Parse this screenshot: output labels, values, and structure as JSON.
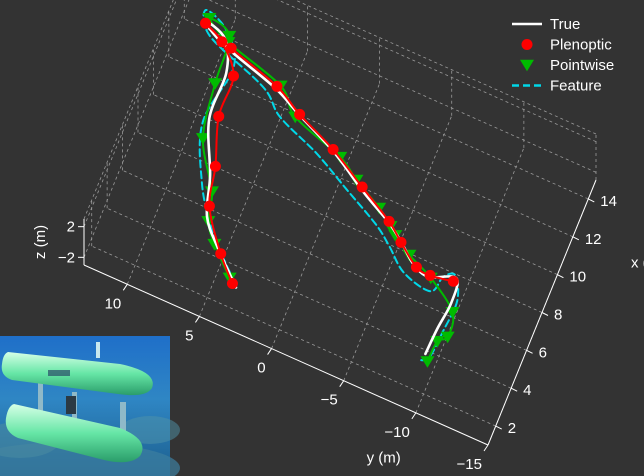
{
  "chart_data": {
    "type": "line",
    "projection": "3d",
    "title": "",
    "xlabel": "x (m)",
    "ylabel": "y (m)",
    "zlabel": "z (m)",
    "x_ticks": [
      "2",
      "4",
      "6",
      "8",
      "10",
      "12",
      "14"
    ],
    "y_ticks": [
      "10",
      "5",
      "0",
      "−5",
      "−10",
      "−15"
    ],
    "z_ticks": [
      "2",
      "−2"
    ],
    "xlim": [
      1,
      15
    ],
    "ylim": [
      -15,
      13
    ],
    "zlim": [
      -3,
      3
    ],
    "grid": true,
    "legend_position": "top-right",
    "background_color": "#333333",
    "series": [
      {
        "name": "True",
        "color": "#ffffff",
        "style": "solid",
        "marker": "none",
        "points": [
          [
            2.0,
            3.0,
            0
          ],
          [
            3.4,
            5.0,
            0
          ],
          [
            4.6,
            6.4,
            0
          ],
          [
            6.5,
            7.2,
            0
          ],
          [
            9.0,
            8.6,
            0
          ],
          [
            11.4,
            8.7,
            0
          ],
          [
            12.9,
            9.6,
            0
          ],
          [
            13.3,
            11.2,
            0
          ],
          [
            12.6,
            9.5,
            0
          ],
          [
            11.7,
            5.5,
            0
          ],
          [
            11.0,
            3.5,
            0
          ],
          [
            10.0,
            0.5,
            0
          ],
          [
            8.8,
            -2.2,
            0
          ],
          [
            7.9,
            -4.5,
            0
          ],
          [
            7.2,
            -5.8,
            0
          ],
          [
            6.6,
            -6.8,
            0
          ],
          [
            6.3,
            -8.0,
            0
          ],
          [
            6.8,
            -9.7,
            0
          ],
          [
            5.6,
            -10.0,
            0
          ],
          [
            4.2,
            -9.8,
            0
          ],
          [
            2.8,
            -9.7,
            0
          ]
        ]
      },
      {
        "name": "Plenoptic",
        "color": "#ff0000",
        "style": "solid",
        "marker": "circle",
        "points": [
          [
            2.1,
            3.3,
            0
          ],
          [
            3.2,
            4.7,
            0
          ],
          [
            5.1,
            6.5,
            0
          ],
          [
            7.0,
            7.1,
            0
          ],
          [
            9.3,
            8.1,
            0
          ],
          [
            11.4,
            8.2,
            0
          ],
          [
            12.7,
            9.7,
            0
          ],
          [
            13.2,
            11.1,
            0
          ],
          [
            12.6,
            9.0,
            0
          ],
          [
            11.8,
            5.4,
            0
          ],
          [
            11.0,
            3.4,
            0
          ],
          [
            10.1,
            0.6,
            0
          ],
          [
            9.0,
            -2.0,
            0
          ],
          [
            8.0,
            -4.4,
            0
          ],
          [
            7.3,
            -5.6,
            0
          ],
          [
            6.5,
            -7.1,
            0
          ],
          [
            6.4,
            -8.1,
            0
          ],
          [
            6.6,
            -9.6,
            0
          ]
        ]
      },
      {
        "name": "Pointwise",
        "color": "#00bb00",
        "style": "solid",
        "marker": "triangle-down",
        "points": [
          [
            2.3,
            3.6,
            0
          ],
          [
            3.5,
            5.3,
            0
          ],
          [
            4.4,
            6.2,
            0
          ],
          [
            5.8,
            6.7,
            0
          ],
          [
            8.0,
            8.5,
            0
          ],
          [
            10.7,
            9.1,
            0
          ],
          [
            13.1,
            9.4,
            0
          ],
          [
            13.5,
            11.0,
            0
          ],
          [
            12.8,
            9.3,
            0
          ],
          [
            11.9,
            5.2,
            0
          ],
          [
            10.8,
            3.6,
            0
          ],
          [
            9.9,
            0.0,
            0
          ],
          [
            9.2,
            -1.5,
            0
          ],
          [
            8.4,
            -3.5,
            0
          ],
          [
            7.8,
            -4.6,
            0
          ],
          [
            7.5,
            -5.1,
            0
          ],
          [
            6.9,
            -6.4,
            0
          ],
          [
            6.3,
            -8.2,
            0
          ],
          [
            5.2,
            -10.3,
            0
          ],
          [
            4.0,
            -10.6,
            0
          ],
          [
            3.6,
            -10.1,
            0
          ],
          [
            2.5,
            -10.0,
            0
          ]
        ]
      },
      {
        "name": "Feature",
        "color": "#00d8e8",
        "style": "dashed",
        "marker": "none",
        "points": [
          [
            2.2,
            3.2,
            0
          ],
          [
            3.3,
            4.8,
            0
          ],
          [
            4.3,
            6.0,
            0
          ],
          [
            6.0,
            7.5,
            0
          ],
          [
            8.7,
            8.9,
            0
          ],
          [
            11.8,
            8.4,
            0
          ],
          [
            13.3,
            9.7,
            0
          ],
          [
            13.8,
            11.4,
            0
          ],
          [
            12.7,
            10.5,
            0
          ],
          [
            11.5,
            6.2,
            0
          ],
          [
            10.5,
            4.5,
            0
          ],
          [
            9.6,
            1.5,
            0
          ],
          [
            8.6,
            -1.1,
            0
          ],
          [
            7.6,
            -3.7,
            0
          ],
          [
            6.9,
            -5.0,
            0
          ],
          [
            6.0,
            -6.5,
            0
          ],
          [
            5.7,
            -8.5,
            0
          ],
          [
            6.6,
            -8.9,
            0
          ],
          [
            6.9,
            -9.6,
            0
          ],
          [
            5.8,
            -10.3,
            0
          ],
          [
            4.2,
            -10.2,
            0
          ],
          [
            2.7,
            -10.0,
            0
          ],
          [
            2.4,
            -9.4,
            0
          ]
        ]
      }
    ]
  }
}
